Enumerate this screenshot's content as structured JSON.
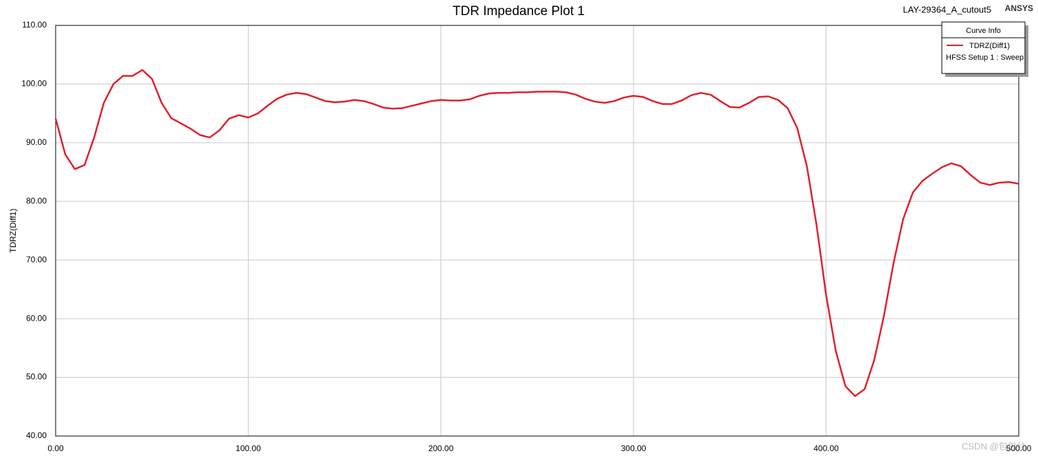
{
  "chart_data": {
    "type": "line",
    "title": "TDR Impedance Plot 1",
    "project": "LAY-29364_A_cutout5",
    "brand": "ANSYS",
    "ylabel": "TDRZ(Diff1)",
    "legend_title": "Curve Info",
    "legend": "top-right",
    "grid": true,
    "xlim": [
      0,
      500
    ],
    "ylim": [
      40,
      110
    ],
    "xticks": [
      {
        "value": 0,
        "label": "0.00"
      },
      {
        "value": 100,
        "label": "100.00"
      },
      {
        "value": 200,
        "label": "200.00"
      },
      {
        "value": 300,
        "label": "300.00"
      },
      {
        "value": 400,
        "label": "400.00"
      },
      {
        "value": 500,
        "label": "500.00"
      }
    ],
    "yticks": [
      {
        "value": 40,
        "label": "40.00"
      },
      {
        "value": 50,
        "label": "50.00"
      },
      {
        "value": 60,
        "label": "60.00"
      },
      {
        "value": 70,
        "label": "70.00"
      },
      {
        "value": 80,
        "label": "80.00"
      },
      {
        "value": 90,
        "label": "90.00"
      },
      {
        "value": 100,
        "label": "100.00"
      },
      {
        "value": 110,
        "label": "110.00"
      }
    ],
    "x": [
      0,
      5,
      10,
      15,
      20,
      25,
      30,
      35,
      40,
      45,
      50,
      55,
      60,
      65,
      70,
      75,
      80,
      85,
      90,
      95,
      100,
      105,
      110,
      115,
      120,
      125,
      130,
      135,
      140,
      145,
      150,
      155,
      160,
      165,
      170,
      175,
      180,
      185,
      190,
      195,
      200,
      205,
      210,
      215,
      220,
      225,
      230,
      235,
      240,
      245,
      250,
      255,
      260,
      265,
      270,
      275,
      280,
      285,
      290,
      295,
      300,
      305,
      310,
      315,
      320,
      325,
      330,
      335,
      340,
      345,
      350,
      355,
      360,
      365,
      370,
      375,
      380,
      385,
      390,
      395,
      400,
      405,
      410,
      415,
      420,
      425,
      430,
      435,
      440,
      445,
      450,
      455,
      460,
      465,
      470,
      475,
      480,
      485,
      490,
      495,
      500
    ],
    "series": [
      {
        "name": "TDRZ(Diff1)",
        "source": "HFSS Setup 1 : Sweep",
        "color": "#e0202a",
        "values": [
          94.1,
          88.0,
          85.5,
          86.2,
          90.9,
          96.8,
          100.0,
          101.4,
          101.4,
          102.4,
          100.9,
          96.8,
          94.2,
          93.3,
          92.4,
          91.3,
          90.9,
          92.1,
          94.1,
          94.7,
          94.3,
          95.0,
          96.3,
          97.5,
          98.2,
          98.5,
          98.3,
          97.7,
          97.1,
          96.9,
          97.0,
          97.3,
          97.1,
          96.6,
          96.0,
          95.8,
          95.9,
          96.3,
          96.7,
          97.1,
          97.3,
          97.2,
          97.2,
          97.4,
          98.0,
          98.4,
          98.5,
          98.5,
          98.6,
          98.6,
          98.7,
          98.7,
          98.7,
          98.6,
          98.2,
          97.5,
          97.0,
          96.8,
          97.1,
          97.7,
          98.0,
          97.8,
          97.1,
          96.6,
          96.6,
          97.2,
          98.1,
          98.5,
          98.2,
          97.1,
          96.1,
          96.0,
          96.8,
          97.8,
          97.9,
          97.3,
          95.9,
          92.5,
          86.0,
          76.0,
          64.0,
          54.5,
          48.5,
          46.8,
          48.0,
          53.0,
          60.5,
          69.5,
          77.0,
          81.5,
          83.5,
          84.7,
          85.8,
          86.5,
          86.0,
          84.5,
          83.2,
          82.8,
          83.2,
          83.3,
          83.0
        ]
      }
    ],
    "watermark": "CSDN @包包兮"
  }
}
